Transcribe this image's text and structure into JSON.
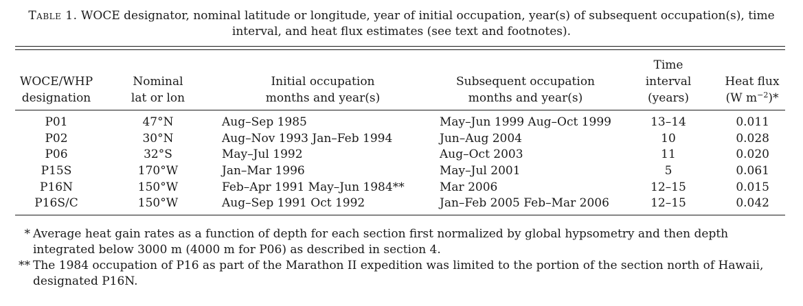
{
  "caption": {
    "label": "Table 1.",
    "text": "WOCE designator, nominal latitude or longitude, year of initial occupation, year(s) of subsequent occupation(s), time interval, and heat flux estimates (see text and footnotes)."
  },
  "columns": [
    {
      "key": "designation",
      "lines": [
        "WOCE/WHP",
        "designation"
      ]
    },
    {
      "key": "lat_lon",
      "lines": [
        "Nominal",
        "lat or lon"
      ]
    },
    {
      "key": "initial",
      "lines": [
        "Initial occupation",
        "months and year(s)"
      ]
    },
    {
      "key": "subsequent",
      "lines": [
        "Subsequent occupation",
        "months and year(s)"
      ]
    },
    {
      "key": "interval",
      "lines": [
        "Time",
        "interval",
        "(years)"
      ]
    },
    {
      "key": "heat_flux",
      "lines": [
        "Heat flux",
        "(W m",
        "−2",
        ")*"
      ]
    }
  ],
  "rows": [
    {
      "designation": "P01",
      "lat_lon": "47°N",
      "initial": "Aug–Sep 1985",
      "subsequent": "May–Jun 1999 Aug–Oct 1999",
      "interval": "13–14",
      "heat_flux": "0.011"
    },
    {
      "designation": "P02",
      "lat_lon": "30°N",
      "initial": "Aug–Nov 1993 Jan–Feb 1994",
      "subsequent": "Jun–Aug 2004",
      "interval": "10",
      "heat_flux": "0.028"
    },
    {
      "designation": "P06",
      "lat_lon": "32°S",
      "initial": "May–Jul 1992",
      "subsequent": "Aug–Oct 2003",
      "interval": "11",
      "heat_flux": "0.020"
    },
    {
      "designation": "P15S",
      "lat_lon": "170°W",
      "initial": "Jan–Mar 1996",
      "subsequent": "May–Jul 2001",
      "interval": "5",
      "heat_flux": "0.061"
    },
    {
      "designation": "P16N",
      "lat_lon": "150°W",
      "initial": "Feb–Apr 1991 May–Jun 1984**",
      "subsequent": "Mar 2006",
      "interval": "12–15",
      "heat_flux": "0.015"
    },
    {
      "designation": "P16S/C",
      "lat_lon": "150°W",
      "initial": "Aug–Sep 1991 Oct 1992",
      "subsequent": "Jan–Feb 2005 Feb–Mar 2006",
      "interval": "12–15",
      "heat_flux": "0.042"
    }
  ],
  "footnotes": [
    {
      "mark": "*",
      "text": "Average heat gain rates as a function of depth for each section first normalized by global hypsometry and then depth integrated below 3000 m (4000 m for P06) as described in section 4."
    },
    {
      "mark": "**",
      "text": "The 1984 occupation of P16 as part of the Marathon II expedition was limited to the portion of the section north of Hawaii, designated P16N."
    }
  ]
}
